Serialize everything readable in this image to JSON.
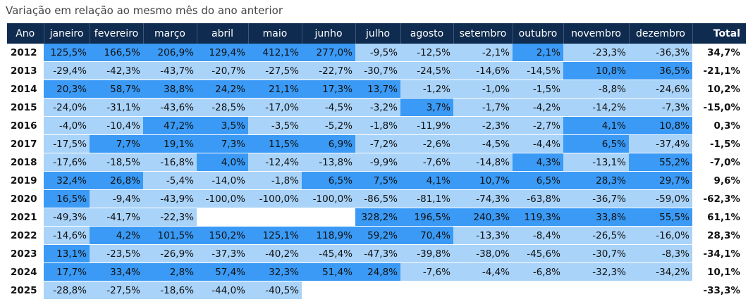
{
  "title": "Variação em relação ao mesmo mês do ano anterior",
  "colors": {
    "header_bg": "#0f2b4f",
    "positive": "#3a9af5",
    "negative": "#a9d3f9",
    "empty": "#ffffff"
  },
  "headers": [
    "Ano",
    "janeiro",
    "fevereiro",
    "março",
    "abril",
    "maio",
    "junho",
    "julho",
    "agosto",
    "setembro",
    "outubro",
    "novembro",
    "dezembro",
    "Total"
  ],
  "rows": [
    {
      "year": "2012",
      "cells": [
        "125,5%",
        "166,5%",
        "206,9%",
        "129,4%",
        "412,1%",
        "277,0%",
        "-9,5%",
        "-12,5%",
        "-2,1%",
        "2,1%",
        "-23,3%",
        "-36,3%"
      ],
      "total": "34,7%"
    },
    {
      "year": "2013",
      "cells": [
        "-29,4%",
        "-42,3%",
        "-43,7%",
        "-20,7%",
        "-27,5%",
        "-22,7%",
        "-30,7%",
        "-24,5%",
        "-14,6%",
        "-14,5%",
        "10,8%",
        "36,5%"
      ],
      "total": "-21,1%"
    },
    {
      "year": "2014",
      "cells": [
        "20,3%",
        "58,7%",
        "38,8%",
        "24,2%",
        "21,1%",
        "17,3%",
        "13,7%",
        "-1,2%",
        "-1,0%",
        "-1,5%",
        "-8,8%",
        "-24,6%"
      ],
      "total": "10,2%"
    },
    {
      "year": "2015",
      "cells": [
        "-24,0%",
        "-31,1%",
        "-43,6%",
        "-28,5%",
        "-17,0%",
        "-4,5%",
        "-3,2%",
        "3,7%",
        "-1,7%",
        "-4,2%",
        "-14,2%",
        "-7,3%"
      ],
      "total": "-15,0%"
    },
    {
      "year": "2016",
      "cells": [
        "-4,0%",
        "-10,4%",
        "47,2%",
        "3,5%",
        "-3,5%",
        "-5,2%",
        "-1,8%",
        "-11,9%",
        "-2,3%",
        "-2,7%",
        "4,1%",
        "10,8%"
      ],
      "total": "0,3%"
    },
    {
      "year": "2017",
      "cells": [
        "-17,5%",
        "7,7%",
        "19,1%",
        "7,3%",
        "11,5%",
        "6,9%",
        "-7,2%",
        "-2,6%",
        "-4,5%",
        "-4,4%",
        "6,5%",
        "-37,4%"
      ],
      "total": "-1,5%"
    },
    {
      "year": "2018",
      "cells": [
        "-17,6%",
        "-18,5%",
        "-16,8%",
        "4,0%",
        "-12,4%",
        "-13,8%",
        "-9,9%",
        "-7,6%",
        "-14,8%",
        "4,3%",
        "-13,1%",
        "55,2%"
      ],
      "total": "-7,0%"
    },
    {
      "year": "2019",
      "cells": [
        "32,4%",
        "26,8%",
        "-5,4%",
        "-14,0%",
        "-1,8%",
        "6,5%",
        "7,5%",
        "4,1%",
        "10,7%",
        "6,5%",
        "28,3%",
        "29,7%"
      ],
      "total": "9,6%"
    },
    {
      "year": "2020",
      "cells": [
        "16,5%",
        "-9,4%",
        "-43,9%",
        "-100,0%",
        "-100,0%",
        "-100,0%",
        "-86,5%",
        "-81,1%",
        "-74,3%",
        "-63,8%",
        "-36,7%",
        "-59,0%"
      ],
      "total": "-62,3%"
    },
    {
      "year": "2021",
      "cells": [
        "-49,3%",
        "-41,7%",
        "-22,3%",
        "",
        "",
        "",
        "328,2%",
        "196,5%",
        "240,3%",
        "119,3%",
        "33,8%",
        "55,5%"
      ],
      "total": "61,1%"
    },
    {
      "year": "2022",
      "cells": [
        "-14,6%",
        "4,2%",
        "101,5%",
        "150,2%",
        "125,1%",
        "118,9%",
        "59,2%",
        "70,4%",
        "-13,3%",
        "-8,4%",
        "-26,5%",
        "-16,0%"
      ],
      "total": "28,3%"
    },
    {
      "year": "2023",
      "cells": [
        "13,1%",
        "-23,5%",
        "-26,9%",
        "-37,3%",
        "-40,2%",
        "-45,4%",
        "-47,3%",
        "-39,8%",
        "-38,0%",
        "-45,6%",
        "-30,7%",
        "-8,3%"
      ],
      "total": "-34,1%"
    },
    {
      "year": "2024",
      "cells": [
        "17,7%",
        "33,4%",
        "2,8%",
        "57,4%",
        "32,3%",
        "51,4%",
        "24,8%",
        "-7,6%",
        "-4,4%",
        "-6,8%",
        "-32,3%",
        "-34,2%"
      ],
      "total": "10,1%"
    },
    {
      "year": "2025",
      "cells": [
        "-28,8%",
        "-27,5%",
        "-18,6%",
        "-44,0%",
        "-40,5%",
        "",
        "",
        "",
        "",
        "",
        "",
        ""
      ],
      "total": "-33,3%"
    }
  ]
}
